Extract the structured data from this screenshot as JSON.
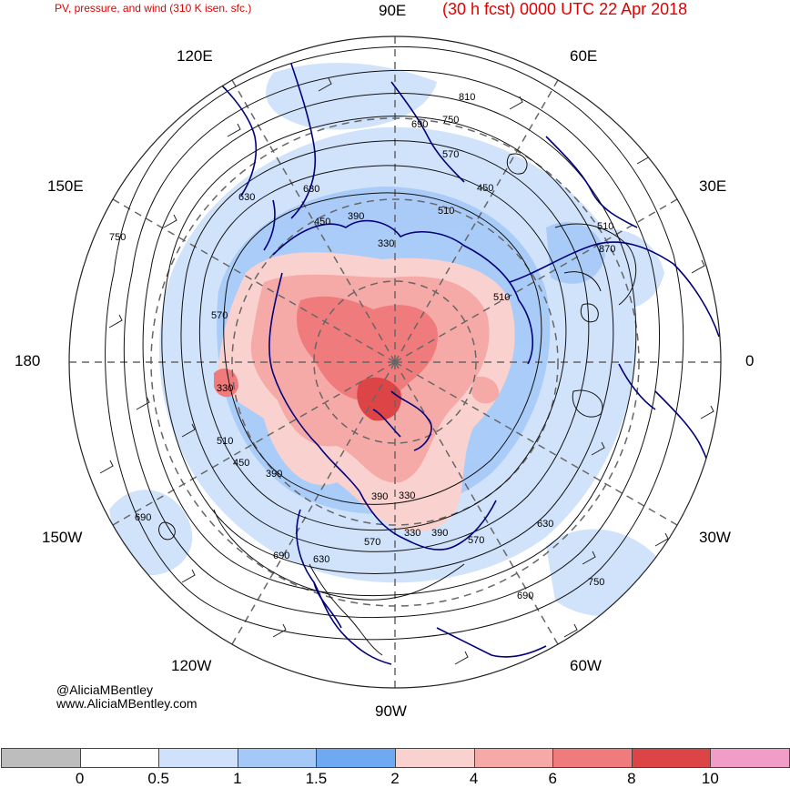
{
  "header": {
    "left_title": "PV, pressure, and wind (310 K isen. sfc.)",
    "right_title": "(30 h fcst) 0000 UTC 22 Apr 2018",
    "title_color": "#e00000"
  },
  "longitude_labels": {
    "l90e": "90E",
    "l60e": "60E",
    "l120e": "120E",
    "l30e": "30E",
    "l150e": "150E",
    "l180": "180",
    "l0": "0",
    "l150w": "150W",
    "l30w": "30W",
    "l120w": "120W",
    "l60w": "60W",
    "l90w": "90W"
  },
  "contour_labels": [
    "810",
    "750",
    "690",
    "570",
    "630",
    "510",
    "450",
    "390",
    "330",
    "690",
    "630",
    "570",
    "510",
    "450",
    "390",
    "330",
    "750",
    "690",
    "630",
    "570",
    "510",
    "450",
    "390",
    "330",
    "870",
    "750",
    "690",
    "630",
    "570",
    "510",
    "390",
    "330"
  ],
  "credits": {
    "handle": "@AliciaMBentley",
    "site": "www.AliciaMBentley.com"
  },
  "colorbar": {
    "ticks": [
      "0",
      "0.5",
      "1",
      "1.5",
      "2",
      "4",
      "6",
      "8",
      "10"
    ],
    "colors": [
      "#bdbdbd",
      "#ffffff",
      "#cfe1fb",
      "#a5c9f7",
      "#6fa9f1",
      "#f9d2cf",
      "#f6aaa8",
      "#ef7b7c",
      "#dd4446",
      "#f29cc8"
    ]
  },
  "map_colors": {
    "coast": "#00007a",
    "contour": "#111111",
    "grid": "#666666",
    "pv_low": "#a5c9f7",
    "pv_mid": "#cfe1fb",
    "pv_high": "#f6aaa8",
    "pv_top": "#ef7b7c"
  }
}
